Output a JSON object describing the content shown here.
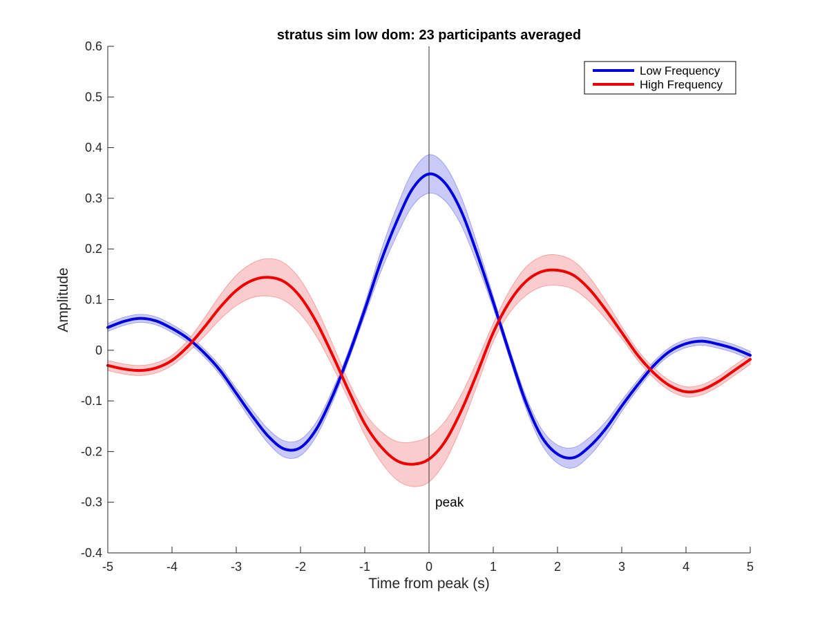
{
  "chart_data": {
    "type": "line",
    "title": "stratus sim low dom: 23 participants averaged",
    "xlabel": "Time from peak (s)",
    "ylabel": "Amplitude",
    "xlim": [
      -5,
      5
    ],
    "ylim": [
      -0.4,
      0.6
    ],
    "xticks": [
      -5,
      -4,
      -3,
      -2,
      -1,
      0,
      1,
      2,
      3,
      4,
      5
    ],
    "yticks": [
      -0.4,
      -0.3,
      -0.2,
      -0.1,
      0,
      0.1,
      0.2,
      0.3,
      0.4,
      0.5,
      0.6
    ],
    "xtick_labels": [
      "-5",
      "-4",
      "-3",
      "-2",
      "-1",
      "0",
      "1",
      "2",
      "3",
      "4",
      "5"
    ],
    "ytick_labels": [
      "-0.4",
      "-0.3",
      "-0.2",
      "-0.1",
      "0",
      "0.1",
      "0.2",
      "0.3",
      "0.4",
      "0.5",
      "0.6"
    ],
    "grid": false,
    "legend_position": "top-right",
    "vertical_line": {
      "x": 0,
      "label": "peak"
    },
    "series": [
      {
        "name": "Low Frequency",
        "color": "#0000dd",
        "band_color": "#b8b8f5",
        "x": [
          -5,
          -4.75,
          -4.5,
          -4.25,
          -4,
          -3.75,
          -3.5,
          -3.25,
          -3,
          -2.75,
          -2.5,
          -2.25,
          -2,
          -1.75,
          -1.5,
          -1.25,
          -1,
          -0.75,
          -0.5,
          -0.25,
          0,
          0.25,
          0.5,
          0.75,
          1,
          1.25,
          1.5,
          1.75,
          2,
          2.25,
          2.5,
          2.75,
          3,
          3.25,
          3.5,
          3.75,
          4,
          4.25,
          4.5,
          4.75,
          5
        ],
        "y": [
          0.045,
          0.057,
          0.063,
          0.058,
          0.043,
          0.023,
          -0.005,
          -0.04,
          -0.085,
          -0.13,
          -0.17,
          -0.195,
          -0.192,
          -0.155,
          -0.09,
          -0.01,
          0.08,
          0.175,
          0.255,
          0.32,
          0.348,
          0.33,
          0.275,
          0.19,
          0.095,
          -0.005,
          -0.1,
          -0.17,
          -0.205,
          -0.212,
          -0.19,
          -0.155,
          -0.11,
          -0.068,
          -0.03,
          -0.002,
          0.013,
          0.018,
          0.012,
          0.003,
          -0.01
        ],
        "err": [
          0.008,
          0.008,
          0.008,
          0.008,
          0.008,
          0.008,
          0.008,
          0.009,
          0.01,
          0.012,
          0.014,
          0.016,
          0.016,
          0.014,
          0.012,
          0.01,
          0.012,
          0.02,
          0.028,
          0.034,
          0.038,
          0.035,
          0.028,
          0.02,
          0.012,
          0.01,
          0.012,
          0.015,
          0.018,
          0.02,
          0.018,
          0.014,
          0.011,
          0.009,
          0.008,
          0.008,
          0.008,
          0.008,
          0.008,
          0.008,
          0.008
        ]
      },
      {
        "name": "High Frequency",
        "color": "#ee0000",
        "band_color": "#f7bcbc",
        "x": [
          -5,
          -4.75,
          -4.5,
          -4.25,
          -4,
          -3.75,
          -3.5,
          -3.25,
          -3,
          -2.75,
          -2.5,
          -2.25,
          -2,
          -1.75,
          -1.5,
          -1.25,
          -1,
          -0.75,
          -0.5,
          -0.25,
          0,
          0.25,
          0.5,
          0.75,
          1,
          1.25,
          1.5,
          1.75,
          2,
          2.25,
          2.5,
          2.75,
          3,
          3.25,
          3.5,
          3.75,
          4,
          4.25,
          4.5,
          4.75,
          5
        ],
        "y": [
          -0.03,
          -0.037,
          -0.04,
          -0.035,
          -0.02,
          0.008,
          0.045,
          0.085,
          0.118,
          0.138,
          0.144,
          0.135,
          0.105,
          0.055,
          -0.01,
          -0.08,
          -0.145,
          -0.19,
          -0.218,
          -0.225,
          -0.215,
          -0.18,
          -0.12,
          -0.045,
          0.035,
          0.095,
          0.135,
          0.155,
          0.158,
          0.148,
          0.12,
          0.08,
          0.035,
          -0.01,
          -0.045,
          -0.07,
          -0.082,
          -0.078,
          -0.062,
          -0.04,
          -0.018
        ],
        "err": [
          0.01,
          0.01,
          0.01,
          0.01,
          0.01,
          0.012,
          0.018,
          0.024,
          0.03,
          0.034,
          0.037,
          0.037,
          0.034,
          0.028,
          0.022,
          0.018,
          0.022,
          0.03,
          0.038,
          0.044,
          0.045,
          0.04,
          0.032,
          0.024,
          0.018,
          0.022,
          0.028,
          0.03,
          0.03,
          0.028,
          0.024,
          0.018,
          0.012,
          0.01,
          0.01,
          0.01,
          0.01,
          0.01,
          0.01,
          0.01,
          0.01
        ]
      }
    ]
  }
}
